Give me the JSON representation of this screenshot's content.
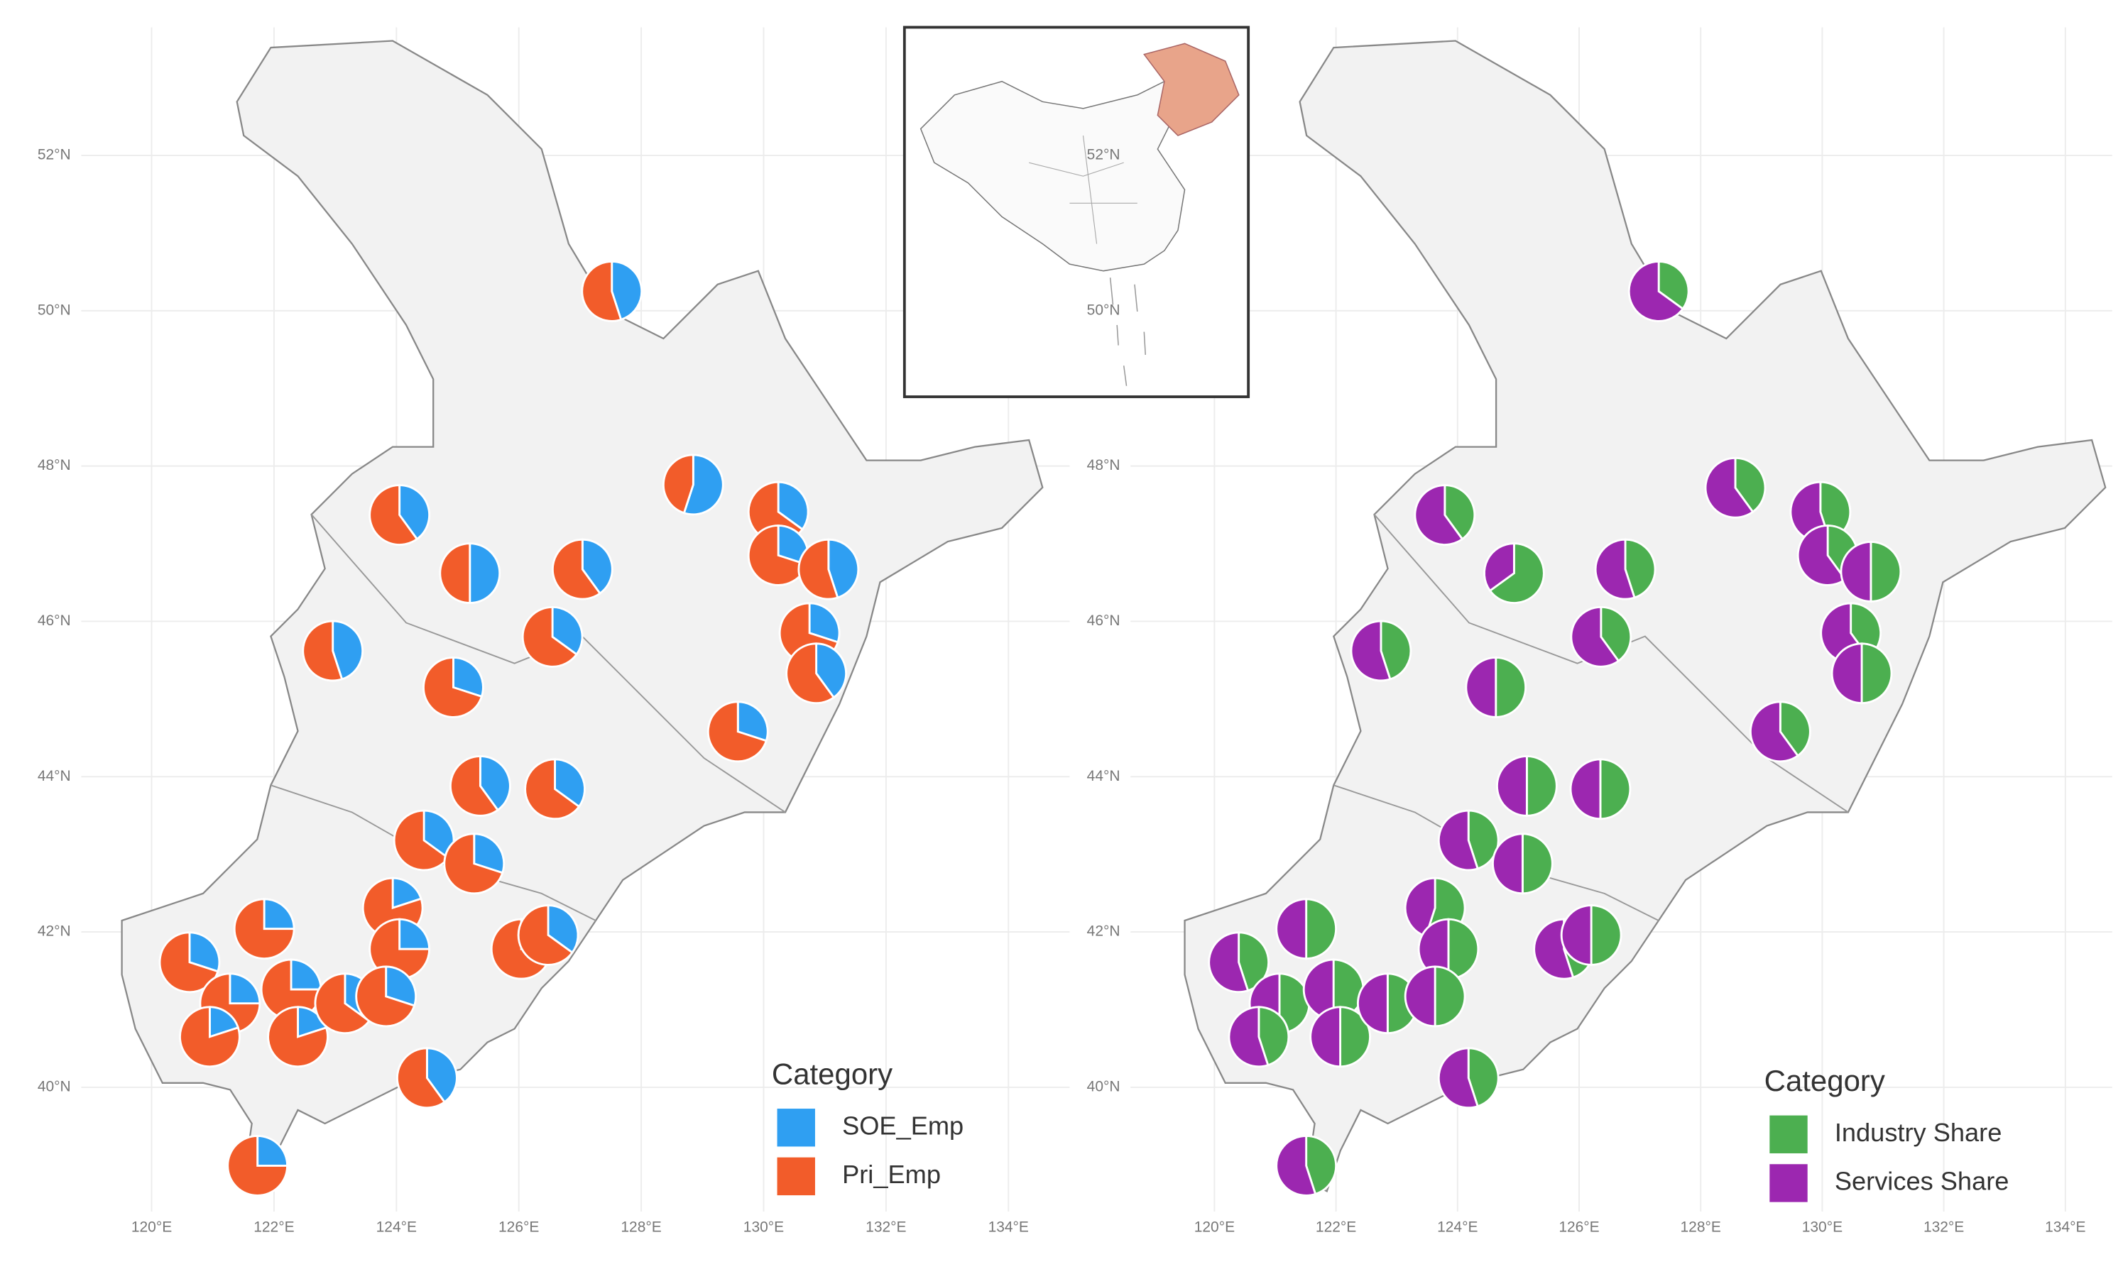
{
  "maps": [
    {
      "xlim": [
        118.85,
        135
      ],
      "ylim": [
        38.4,
        53.65
      ],
      "lat_ticks": [
        {
          "value": 52,
          "label": "52°N"
        },
        {
          "value": 50,
          "label": "50°N"
        },
        {
          "value": 48,
          "label": "48°N"
        },
        {
          "value": 46,
          "label": "46°N"
        },
        {
          "value": 44,
          "label": "44°N"
        },
        {
          "value": 42,
          "label": "42°N"
        },
        {
          "value": 40,
          "label": "40°N"
        }
      ],
      "lon_ticks": [
        {
          "value": 120,
          "label": "120°E"
        },
        {
          "value": 122,
          "label": "122°E"
        },
        {
          "value": 124,
          "label": "124°E"
        },
        {
          "value": 126,
          "label": "126°E"
        },
        {
          "value": 128,
          "label": "128°E"
        },
        {
          "value": 130,
          "label": "130°E"
        },
        {
          "value": 132,
          "label": "132°E"
        },
        {
          "value": 134,
          "label": "134°E"
        }
      ],
      "legend_title": "Category",
      "series": [
        {
          "name": "SOE_Emp",
          "color": "#2f9ff2"
        },
        {
          "name": "Pri_Emp",
          "color": "#f25c2a"
        }
      ],
      "pies": [
        {
          "lon": 127.52,
          "lat": 50.25,
          "values": [
            45,
            55
          ]
        },
        {
          "lon": 128.85,
          "lat": 47.76,
          "values": [
            55,
            45
          ]
        },
        {
          "lon": 130.24,
          "lat": 47.41,
          "values": [
            35,
            65
          ]
        },
        {
          "lon": 130.24,
          "lat": 46.85,
          "values": [
            30,
            70
          ]
        },
        {
          "lon": 131.06,
          "lat": 46.67,
          "values": [
            45,
            55
          ]
        },
        {
          "lon": 130.75,
          "lat": 45.85,
          "values": [
            30,
            70
          ]
        },
        {
          "lon": 130.86,
          "lat": 45.33,
          "values": [
            40,
            60
          ]
        },
        {
          "lon": 129.58,
          "lat": 44.58,
          "values": [
            30,
            70
          ]
        },
        {
          "lon": 124.05,
          "lat": 47.37,
          "values": [
            40,
            60
          ]
        },
        {
          "lon": 125.2,
          "lat": 46.62,
          "values": [
            50,
            50
          ]
        },
        {
          "lon": 127.04,
          "lat": 46.67,
          "values": [
            40,
            60
          ]
        },
        {
          "lon": 126.55,
          "lat": 45.8,
          "values": [
            35,
            65
          ]
        },
        {
          "lon": 122.96,
          "lat": 45.62,
          "values": [
            45,
            55
          ]
        },
        {
          "lon": 124.93,
          "lat": 45.15,
          "values": [
            30,
            70
          ]
        },
        {
          "lon": 125.37,
          "lat": 43.88,
          "values": [
            40,
            60
          ]
        },
        {
          "lon": 126.59,
          "lat": 43.84,
          "values": [
            35,
            65
          ]
        },
        {
          "lon": 124.45,
          "lat": 43.18,
          "values": [
            35,
            65
          ]
        },
        {
          "lon": 125.27,
          "lat": 42.88,
          "values": [
            30,
            70
          ]
        },
        {
          "lon": 121.84,
          "lat": 42.04,
          "values": [
            25,
            75
          ]
        },
        {
          "lon": 120.62,
          "lat": 41.61,
          "values": [
            30,
            70
          ]
        },
        {
          "lon": 121.28,
          "lat": 41.08,
          "values": [
            25,
            75
          ]
        },
        {
          "lon": 120.95,
          "lat": 40.65,
          "values": [
            20,
            80
          ]
        },
        {
          "lon": 122.28,
          "lat": 41.26,
          "values": [
            25,
            75
          ]
        },
        {
          "lon": 122.39,
          "lat": 40.65,
          "values": [
            20,
            80
          ]
        },
        {
          "lon": 123.16,
          "lat": 41.08,
          "values": [
            35,
            65
          ]
        },
        {
          "lon": 123.94,
          "lat": 42.31,
          "values": [
            20,
            80
          ]
        },
        {
          "lon": 124.05,
          "lat": 41.78,
          "values": [
            25,
            75
          ]
        },
        {
          "lon": 123.83,
          "lat": 41.17,
          "values": [
            30,
            70
          ]
        },
        {
          "lon": 126.04,
          "lat": 41.78,
          "values": [
            25,
            75
          ]
        },
        {
          "lon": 126.48,
          "lat": 41.96,
          "values": [
            35,
            65
          ]
        },
        {
          "lon": 124.5,
          "lat": 40.12,
          "values": [
            40,
            60
          ]
        },
        {
          "lon": 121.73,
          "lat": 38.99,
          "values": [
            25,
            75
          ]
        }
      ]
    },
    {
      "xlim": [
        118.62,
        134.77
      ],
      "ylim": [
        38.4,
        53.65
      ],
      "lat_ticks": [
        {
          "value": 52,
          "label": "52°N"
        },
        {
          "value": 50,
          "label": "50°N"
        },
        {
          "value": 48,
          "label": "48°N"
        },
        {
          "value": 46,
          "label": "46°N"
        },
        {
          "value": 44,
          "label": "44°N"
        },
        {
          "value": 42,
          "label": "42°N"
        },
        {
          "value": 40,
          "label": "40°N"
        }
      ],
      "lon_ticks": [
        {
          "value": 120,
          "label": "120°E"
        },
        {
          "value": 122,
          "label": "122°E"
        },
        {
          "value": 124,
          "label": "124°E"
        },
        {
          "value": 126,
          "label": "126°E"
        },
        {
          "value": 128,
          "label": "128°E"
        },
        {
          "value": 130,
          "label": "130°E"
        },
        {
          "value": 132,
          "label": "132°E"
        },
        {
          "value": 134,
          "label": "134°E"
        }
      ],
      "legend_title": "Category",
      "series": [
        {
          "name": "Industry Share",
          "color": "#4caf50"
        },
        {
          "name": "Services Share",
          "color": "#9c27b0"
        }
      ],
      "pies": [
        {
          "lon": 127.31,
          "lat": 50.25,
          "values": [
            35,
            65
          ]
        },
        {
          "lon": 128.57,
          "lat": 47.72,
          "values": [
            40,
            60
          ]
        },
        {
          "lon": 129.97,
          "lat": 47.41,
          "values": [
            45,
            55
          ]
        },
        {
          "lon": 130.09,
          "lat": 46.85,
          "values": [
            40,
            60
          ]
        },
        {
          "lon": 130.8,
          "lat": 46.64,
          "values": [
            50,
            50
          ]
        },
        {
          "lon": 130.47,
          "lat": 45.85,
          "values": [
            40,
            60
          ]
        },
        {
          "lon": 130.65,
          "lat": 45.33,
          "values": [
            50,
            50
          ]
        },
        {
          "lon": 129.31,
          "lat": 44.58,
          "values": [
            40,
            60
          ]
        },
        {
          "lon": 123.79,
          "lat": 47.37,
          "values": [
            40,
            60
          ]
        },
        {
          "lon": 124.93,
          "lat": 46.62,
          "values": [
            65,
            35
          ]
        },
        {
          "lon": 126.76,
          "lat": 46.67,
          "values": [
            45,
            55
          ]
        },
        {
          "lon": 126.36,
          "lat": 45.8,
          "values": [
            40,
            60
          ]
        },
        {
          "lon": 122.74,
          "lat": 45.62,
          "values": [
            45,
            55
          ]
        },
        {
          "lon": 124.63,
          "lat": 45.15,
          "values": [
            50,
            50
          ]
        },
        {
          "lon": 125.14,
          "lat": 43.88,
          "values": [
            50,
            50
          ]
        },
        {
          "lon": 126.35,
          "lat": 43.84,
          "values": [
            50,
            50
          ]
        },
        {
          "lon": 124.18,
          "lat": 43.18,
          "values": [
            45,
            55
          ]
        },
        {
          "lon": 125.07,
          "lat": 42.88,
          "values": [
            50,
            50
          ]
        },
        {
          "lon": 121.51,
          "lat": 42.04,
          "values": [
            50,
            50
          ]
        },
        {
          "lon": 120.4,
          "lat": 41.61,
          "values": [
            45,
            55
          ]
        },
        {
          "lon": 121.07,
          "lat": 41.08,
          "values": [
            50,
            50
          ]
        },
        {
          "lon": 120.73,
          "lat": 40.65,
          "values": [
            45,
            55
          ]
        },
        {
          "lon": 121.96,
          "lat": 41.26,
          "values": [
            50,
            50
          ]
        },
        {
          "lon": 122.07,
          "lat": 40.65,
          "values": [
            50,
            50
          ]
        },
        {
          "lon": 122.85,
          "lat": 41.08,
          "values": [
            50,
            50
          ]
        },
        {
          "lon": 123.63,
          "lat": 42.31,
          "values": [
            55,
            45
          ]
        },
        {
          "lon": 123.85,
          "lat": 41.78,
          "values": [
            50,
            50
          ]
        },
        {
          "lon": 123.63,
          "lat": 41.17,
          "values": [
            50,
            50
          ]
        },
        {
          "lon": 125.75,
          "lat": 41.78,
          "values": [
            45,
            55
          ]
        },
        {
          "lon": 126.2,
          "lat": 41.96,
          "values": [
            50,
            50
          ]
        },
        {
          "lon": 124.18,
          "lat": 40.12,
          "values": [
            45,
            55
          ]
        },
        {
          "lon": 121.51,
          "lat": 38.99,
          "values": [
            45,
            55
          ]
        }
      ]
    }
  ]
}
